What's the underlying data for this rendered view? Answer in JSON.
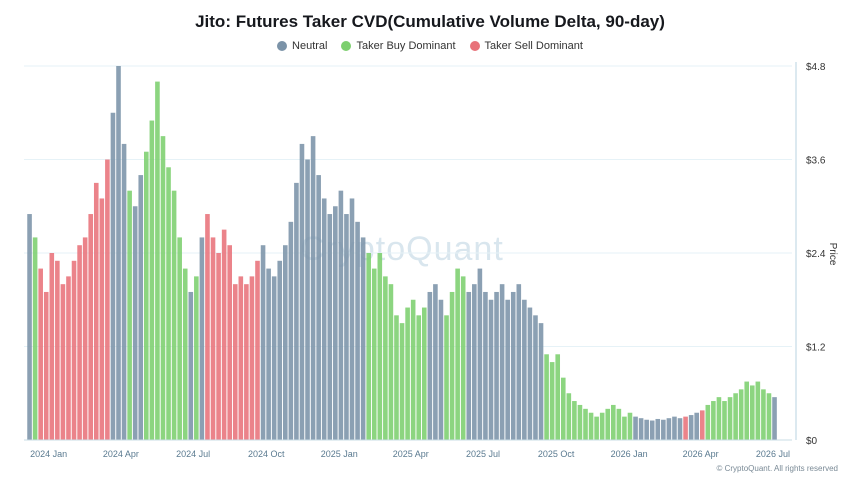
{
  "chart_data": {
    "type": "bar",
    "title": "Jito: Futures Taker CVD(Cumulative Volume Delta, 90-day)",
    "ylabel": "Price",
    "ylim": [
      0,
      4.8
    ],
    "yticks": [
      "$4.8",
      "$3.6",
      "$2.4",
      "$1.2",
      "$0"
    ],
    "ytick_values": [
      4.8,
      3.6,
      2.4,
      1.2,
      0
    ],
    "xticks": [
      "2024 Jan",
      "2024 Apr",
      "2024 Jul",
      "2024 Oct",
      "2025 Jan",
      "2025 Apr",
      "2025 Jul",
      "2025 Oct",
      "2026 Jan",
      "2026 Apr",
      "2026 Jul"
    ],
    "legend_placement": "top-center",
    "grid": true,
    "series": [
      {
        "name": "Neutral",
        "color": "#7b93a8"
      },
      {
        "name": "Taker Buy Dominant",
        "color": "#7ccf6e"
      },
      {
        "name": "Taker Sell Dominant",
        "color": "#e8727a"
      }
    ],
    "periods": [
      {
        "date": "2023-12-08",
        "price": 2.9,
        "state": "neutral"
      },
      {
        "date": "2023-12-15",
        "price": 2.6,
        "state": "buy"
      },
      {
        "date": "2023-12-22",
        "price": 2.2,
        "state": "sell"
      },
      {
        "date": "2023-12-29",
        "price": 1.9,
        "state": "sell"
      },
      {
        "date": "2024-01-05",
        "price": 2.4,
        "state": "sell"
      },
      {
        "date": "2024-01-12",
        "price": 2.3,
        "state": "sell"
      },
      {
        "date": "2024-01-19",
        "price": 2.0,
        "state": "sell"
      },
      {
        "date": "2024-01-26",
        "price": 2.1,
        "state": "sell"
      },
      {
        "date": "2024-02-02",
        "price": 2.3,
        "state": "sell"
      },
      {
        "date": "2024-02-09",
        "price": 2.5,
        "state": "sell"
      },
      {
        "date": "2024-02-16",
        "price": 2.6,
        "state": "sell"
      },
      {
        "date": "2024-02-23",
        "price": 2.9,
        "state": "sell"
      },
      {
        "date": "2024-03-01",
        "price": 3.3,
        "state": "sell"
      },
      {
        "date": "2024-03-08",
        "price": 3.1,
        "state": "sell"
      },
      {
        "date": "2024-03-15",
        "price": 3.6,
        "state": "sell"
      },
      {
        "date": "2024-03-22",
        "price": 4.2,
        "state": "neutral"
      },
      {
        "date": "2024-03-29",
        "price": 4.8,
        "state": "neutral"
      },
      {
        "date": "2024-04-05",
        "price": 3.8,
        "state": "neutral"
      },
      {
        "date": "2024-04-12",
        "price": 3.2,
        "state": "buy"
      },
      {
        "date": "2024-04-19",
        "price": 3.0,
        "state": "neutral"
      },
      {
        "date": "2024-04-26",
        "price": 3.4,
        "state": "neutral"
      },
      {
        "date": "2024-05-03",
        "price": 3.7,
        "state": "buy"
      },
      {
        "date": "2024-05-10",
        "price": 4.1,
        "state": "buy"
      },
      {
        "date": "2024-05-17",
        "price": 4.6,
        "state": "buy"
      },
      {
        "date": "2024-05-24",
        "price": 3.9,
        "state": "buy"
      },
      {
        "date": "2024-05-31",
        "price": 3.5,
        "state": "buy"
      },
      {
        "date": "2024-06-07",
        "price": 3.2,
        "state": "buy"
      },
      {
        "date": "2024-06-14",
        "price": 2.6,
        "state": "buy"
      },
      {
        "date": "2024-06-21",
        "price": 2.2,
        "state": "buy"
      },
      {
        "date": "2024-06-28",
        "price": 1.9,
        "state": "neutral"
      },
      {
        "date": "2024-07-05",
        "price": 2.1,
        "state": "buy"
      },
      {
        "date": "2024-07-12",
        "price": 2.6,
        "state": "neutral"
      },
      {
        "date": "2024-07-19",
        "price": 2.9,
        "state": "sell"
      },
      {
        "date": "2024-07-26",
        "price": 2.6,
        "state": "sell"
      },
      {
        "date": "2024-08-02",
        "price": 2.4,
        "state": "sell"
      },
      {
        "date": "2024-08-09",
        "price": 2.7,
        "state": "sell"
      },
      {
        "date": "2024-08-16",
        "price": 2.5,
        "state": "sell"
      },
      {
        "date": "2024-08-23",
        "price": 2.0,
        "state": "sell"
      },
      {
        "date": "2024-08-30",
        "price": 2.1,
        "state": "sell"
      },
      {
        "date": "2024-09-06",
        "price": 2.0,
        "state": "sell"
      },
      {
        "date": "2024-09-13",
        "price": 2.1,
        "state": "sell"
      },
      {
        "date": "2024-09-20",
        "price": 2.3,
        "state": "sell"
      },
      {
        "date": "2024-09-27",
        "price": 2.5,
        "state": "neutral"
      },
      {
        "date": "2024-10-04",
        "price": 2.2,
        "state": "neutral"
      },
      {
        "date": "2024-10-11",
        "price": 2.1,
        "state": "neutral"
      },
      {
        "date": "2024-10-18",
        "price": 2.3,
        "state": "neutral"
      },
      {
        "date": "2024-10-25",
        "price": 2.5,
        "state": "neutral"
      },
      {
        "date": "2024-11-01",
        "price": 2.8,
        "state": "neutral"
      },
      {
        "date": "2024-11-08",
        "price": 3.3,
        "state": "neutral"
      },
      {
        "date": "2024-11-15",
        "price": 3.8,
        "state": "neutral"
      },
      {
        "date": "2024-11-22",
        "price": 3.6,
        "state": "neutral"
      },
      {
        "date": "2024-11-29",
        "price": 3.9,
        "state": "neutral"
      },
      {
        "date": "2024-12-06",
        "price": 3.4,
        "state": "neutral"
      },
      {
        "date": "2024-12-13",
        "price": 3.1,
        "state": "neutral"
      },
      {
        "date": "2024-12-20",
        "price": 2.9,
        "state": "neutral"
      },
      {
        "date": "2024-12-27",
        "price": 3.0,
        "state": "neutral"
      },
      {
        "date": "2025-01-03",
        "price": 3.2,
        "state": "neutral"
      },
      {
        "date": "2025-01-10",
        "price": 2.9,
        "state": "neutral"
      },
      {
        "date": "2025-01-17",
        "price": 3.1,
        "state": "neutral"
      },
      {
        "date": "2025-01-24",
        "price": 2.8,
        "state": "neutral"
      },
      {
        "date": "2025-01-31",
        "price": 2.6,
        "state": "neutral"
      },
      {
        "date": "2025-02-07",
        "price": 2.4,
        "state": "buy"
      },
      {
        "date": "2025-02-14",
        "price": 2.2,
        "state": "buy"
      },
      {
        "date": "2025-02-21",
        "price": 2.4,
        "state": "buy"
      },
      {
        "date": "2025-02-28",
        "price": 2.1,
        "state": "buy"
      },
      {
        "date": "2025-03-07",
        "price": 2.0,
        "state": "buy"
      },
      {
        "date": "2025-03-14",
        "price": 1.6,
        "state": "buy"
      },
      {
        "date": "2025-03-21",
        "price": 1.5,
        "state": "buy"
      },
      {
        "date": "2025-03-28",
        "price": 1.7,
        "state": "buy"
      },
      {
        "date": "2025-04-04",
        "price": 1.8,
        "state": "buy"
      },
      {
        "date": "2025-04-11",
        "price": 1.6,
        "state": "buy"
      },
      {
        "date": "2025-04-18",
        "price": 1.7,
        "state": "buy"
      },
      {
        "date": "2025-04-25",
        "price": 1.9,
        "state": "neutral"
      },
      {
        "date": "2025-05-02",
        "price": 2.0,
        "state": "neutral"
      },
      {
        "date": "2025-05-09",
        "price": 1.8,
        "state": "neutral"
      },
      {
        "date": "2025-05-16",
        "price": 1.6,
        "state": "buy"
      },
      {
        "date": "2025-05-23",
        "price": 1.9,
        "state": "buy"
      },
      {
        "date": "2025-05-30",
        "price": 2.2,
        "state": "buy"
      },
      {
        "date": "2025-06-06",
        "price": 2.1,
        "state": "buy"
      },
      {
        "date": "2025-06-13",
        "price": 1.9,
        "state": "neutral"
      },
      {
        "date": "2025-06-20",
        "price": 2.0,
        "state": "neutral"
      },
      {
        "date": "2025-06-27",
        "price": 2.2,
        "state": "neutral"
      },
      {
        "date": "2025-07-04",
        "price": 1.9,
        "state": "neutral"
      },
      {
        "date": "2025-07-11",
        "price": 1.8,
        "state": "neutral"
      },
      {
        "date": "2025-07-18",
        "price": 1.9,
        "state": "neutral"
      },
      {
        "date": "2025-07-25",
        "price": 2.0,
        "state": "neutral"
      },
      {
        "date": "2025-08-01",
        "price": 1.8,
        "state": "neutral"
      },
      {
        "date": "2025-08-08",
        "price": 1.9,
        "state": "neutral"
      },
      {
        "date": "2025-08-15",
        "price": 2.0,
        "state": "neutral"
      },
      {
        "date": "2025-08-22",
        "price": 1.8,
        "state": "neutral"
      },
      {
        "date": "2025-08-29",
        "price": 1.7,
        "state": "neutral"
      },
      {
        "date": "2025-09-05",
        "price": 1.6,
        "state": "neutral"
      },
      {
        "date": "2025-09-12",
        "price": 1.5,
        "state": "neutral"
      },
      {
        "date": "2025-09-19",
        "price": 1.1,
        "state": "buy"
      },
      {
        "date": "2025-09-26",
        "price": 1.0,
        "state": "buy"
      },
      {
        "date": "2025-10-03",
        "price": 1.1,
        "state": "buy"
      },
      {
        "date": "2025-10-10",
        "price": 0.8,
        "state": "buy"
      },
      {
        "date": "2025-10-17",
        "price": 0.6,
        "state": "buy"
      },
      {
        "date": "2025-10-24",
        "price": 0.5,
        "state": "buy"
      },
      {
        "date": "2025-10-31",
        "price": 0.45,
        "state": "buy"
      },
      {
        "date": "2025-11-07",
        "price": 0.4,
        "state": "buy"
      },
      {
        "date": "2025-11-14",
        "price": 0.35,
        "state": "buy"
      },
      {
        "date": "2025-11-21",
        "price": 0.3,
        "state": "buy"
      },
      {
        "date": "2025-11-28",
        "price": 0.35,
        "state": "buy"
      },
      {
        "date": "2025-12-05",
        "price": 0.4,
        "state": "buy"
      },
      {
        "date": "2025-12-12",
        "price": 0.45,
        "state": "buy"
      },
      {
        "date": "2025-12-19",
        "price": 0.4,
        "state": "buy"
      },
      {
        "date": "2025-12-26",
        "price": 0.3,
        "state": "buy"
      },
      {
        "date": "2026-01-02",
        "price": 0.35,
        "state": "buy"
      },
      {
        "date": "2026-01-09",
        "price": 0.3,
        "state": "neutral"
      },
      {
        "date": "2026-01-16",
        "price": 0.28,
        "state": "neutral"
      },
      {
        "date": "2026-01-23",
        "price": 0.26,
        "state": "neutral"
      },
      {
        "date": "2026-01-30",
        "price": 0.25,
        "state": "neutral"
      },
      {
        "date": "2026-02-06",
        "price": 0.27,
        "state": "neutral"
      },
      {
        "date": "2026-02-13",
        "price": 0.26,
        "state": "neutral"
      },
      {
        "date": "2026-02-20",
        "price": 0.28,
        "state": "neutral"
      },
      {
        "date": "2026-02-27",
        "price": 0.3,
        "state": "neutral"
      },
      {
        "date": "2026-03-06",
        "price": 0.28,
        "state": "neutral"
      },
      {
        "date": "2026-03-13",
        "price": 0.3,
        "state": "sell"
      },
      {
        "date": "2026-03-20",
        "price": 0.32,
        "state": "neutral"
      },
      {
        "date": "2026-03-27",
        "price": 0.35,
        "state": "neutral"
      },
      {
        "date": "2026-04-03",
        "price": 0.38,
        "state": "sell"
      },
      {
        "date": "2026-04-10",
        "price": 0.45,
        "state": "buy"
      },
      {
        "date": "2026-04-17",
        "price": 0.5,
        "state": "buy"
      },
      {
        "date": "2026-04-24",
        "price": 0.55,
        "state": "buy"
      },
      {
        "date": "2026-05-01",
        "price": 0.5,
        "state": "buy"
      },
      {
        "date": "2026-05-08",
        "price": 0.55,
        "state": "buy"
      },
      {
        "date": "2026-05-15",
        "price": 0.6,
        "state": "buy"
      },
      {
        "date": "2026-05-22",
        "price": 0.65,
        "state": "buy"
      },
      {
        "date": "2026-05-29",
        "price": 0.75,
        "state": "buy"
      },
      {
        "date": "2026-06-05",
        "price": 0.7,
        "state": "buy"
      },
      {
        "date": "2026-06-12",
        "price": 0.75,
        "state": "buy"
      },
      {
        "date": "2026-06-19",
        "price": 0.65,
        "state": "buy"
      },
      {
        "date": "2026-06-26",
        "price": 0.6,
        "state": "buy"
      },
      {
        "date": "2026-07-03",
        "price": 0.55,
        "state": "neutral"
      }
    ]
  },
  "watermark": "CryptoQuant",
  "copyright": "© CryptoQuant. All rights reserved"
}
